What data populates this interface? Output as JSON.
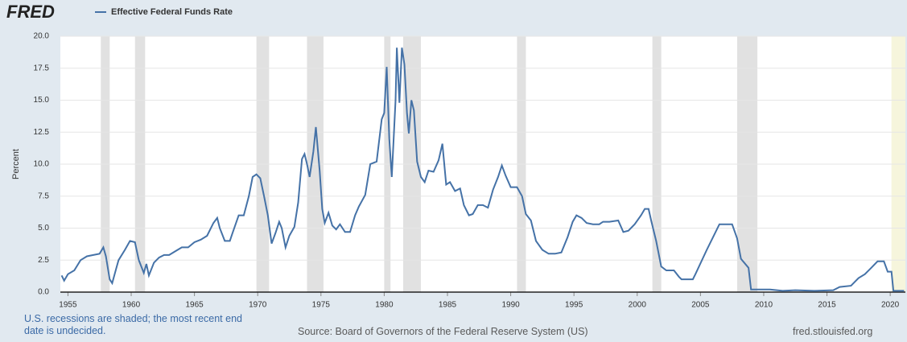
{
  "chart_data": {
    "type": "line",
    "logo": "FRED",
    "y_label": "Percent",
    "note": "U.S. recessions are shaded; the most recent end date is undecided.",
    "source": "Source: Board of Governors of the Federal Reserve System (US)",
    "site": "fred.stlouisfed.org",
    "xlim": [
      1954.4,
      2021.2
    ],
    "ylim": [
      0,
      20
    ],
    "xticks": [
      1955,
      1960,
      1965,
      1970,
      1975,
      1980,
      1985,
      1990,
      1995,
      2000,
      2005,
      2010,
      2015,
      2020
    ],
    "yticks": [
      {
        "value": 0,
        "label": "0.0"
      },
      {
        "value": 2.5,
        "label": "2.5"
      },
      {
        "value": 5,
        "label": "5.0"
      },
      {
        "value": 7.5,
        "label": "7.5"
      },
      {
        "value": 10,
        "label": "10.0"
      },
      {
        "value": 12.5,
        "label": "12.5"
      },
      {
        "value": 15,
        "label": "15.0"
      },
      {
        "value": 17.5,
        "label": "17.5"
      },
      {
        "value": 20,
        "label": "20.0"
      }
    ],
    "grid": true,
    "recession_color": "#e1e1e1",
    "recessions": [
      [
        1957.6,
        1958.3
      ],
      [
        1960.3,
        1961.1
      ],
      [
        1969.9,
        1970.9
      ],
      [
        1973.9,
        1975.2
      ],
      [
        1980.0,
        1980.5
      ],
      [
        1981.5,
        1982.9
      ],
      [
        1990.5,
        1991.2
      ],
      [
        2001.2,
        2001.9
      ],
      [
        2007.9,
        2009.5
      ]
    ],
    "pending_recession": {
      "start": 2020.1,
      "end": 2021.2,
      "color": "#f6f5dc"
    },
    "x": [
      1954.5,
      1954.7,
      1955.0,
      1955.5,
      1956.0,
      1956.5,
      1957.0,
      1957.5,
      1957.8,
      1958.0,
      1958.3,
      1958.5,
      1958.8,
      1959.0,
      1959.5,
      1959.9,
      1960.3,
      1960.6,
      1960.8,
      1961.0,
      1961.2,
      1961.4,
      1961.8,
      1962.2,
      1962.6,
      1963.0,
      1963.5,
      1964.0,
      1964.5,
      1965.0,
      1965.5,
      1966.0,
      1966.5,
      1966.8,
      1967.0,
      1967.4,
      1967.8,
      1968.0,
      1968.5,
      1968.9,
      1969.3,
      1969.6,
      1969.9,
      1970.2,
      1970.5,
      1970.8,
      1971.1,
      1971.4,
      1971.7,
      1971.9,
      1972.2,
      1972.5,
      1972.9,
      1973.2,
      1973.5,
      1973.7,
      1973.9,
      1974.1,
      1974.4,
      1974.6,
      1974.9,
      1975.1,
      1975.3,
      1975.6,
      1975.9,
      1976.2,
      1976.5,
      1976.9,
      1977.3,
      1977.7,
      1978.0,
      1978.5,
      1978.9,
      1979.4,
      1979.8,
      1980.0,
      1980.2,
      1980.4,
      1980.6,
      1980.9,
      1981.0,
      1981.2,
      1981.4,
      1981.6,
      1981.8,
      1981.95,
      1982.15,
      1982.35,
      1982.6,
      1982.9,
      1983.2,
      1983.5,
      1983.9,
      1984.3,
      1984.6,
      1984.9,
      1985.2,
      1985.6,
      1986.0,
      1986.3,
      1986.7,
      1987.0,
      1987.4,
      1987.8,
      1988.2,
      1988.6,
      1989.0,
      1989.3,
      1989.6,
      1990.0,
      1990.5,
      1990.9,
      1991.2,
      1991.6,
      1992.0,
      1992.5,
      1993.0,
      1993.5,
      1994.0,
      1994.5,
      1994.9,
      1995.2,
      1995.6,
      1996.0,
      1996.5,
      1997.0,
      1997.3,
      1997.8,
      1998.5,
      1998.9,
      1999.3,
      1999.8,
      2000.3,
      2000.6,
      2000.9,
      2001.1,
      2001.5,
      2001.9,
      2002.3,
      2002.9,
      2003.3,
      2003.5,
      2004.4,
      2004.6,
      2005.5,
      2006.5,
      2007.5,
      2007.9,
      2008.2,
      2008.8,
      2009.0,
      2009.5,
      2010.5,
      2011.5,
      2012.5,
      2014.0,
      2015.5,
      2016.0,
      2016.9,
      2017.5,
      2018.0,
      2018.5,
      2019.0,
      2019.5,
      2019.8,
      2020.1,
      2020.25,
      2021.1
    ],
    "series": [
      {
        "name": "Effective Federal Funds Rate",
        "color": "#4572a7",
        "values": [
          1.3,
          0.9,
          1.4,
          1.7,
          2.5,
          2.8,
          2.9,
          3.0,
          3.5,
          2.8,
          1.0,
          0.7,
          1.8,
          2.5,
          3.3,
          4.0,
          3.9,
          2.5,
          2.0,
          1.5,
          2.2,
          1.3,
          2.3,
          2.7,
          2.9,
          2.9,
          3.2,
          3.5,
          3.5,
          3.9,
          4.1,
          4.4,
          5.4,
          5.8,
          5.0,
          4.0,
          4.0,
          4.6,
          6.0,
          6.0,
          7.5,
          9.0,
          9.2,
          8.9,
          7.5,
          6.0,
          3.8,
          4.6,
          5.5,
          5.0,
          3.5,
          4.4,
          5.1,
          7.0,
          10.4,
          10.8,
          10.0,
          9.0,
          11.0,
          12.9,
          9.5,
          6.5,
          5.4,
          6.2,
          5.2,
          4.9,
          5.3,
          4.7,
          4.7,
          6.0,
          6.7,
          7.6,
          10.0,
          10.2,
          13.5,
          14.0,
          17.6,
          12.0,
          9.0,
          15.0,
          19.1,
          14.8,
          19.1,
          17.8,
          14.0,
          12.4,
          15.0,
          14.2,
          10.2,
          9.0,
          8.6,
          9.5,
          9.4,
          10.3,
          11.6,
          8.4,
          8.6,
          7.9,
          8.1,
          6.8,
          6.0,
          6.1,
          6.8,
          6.8,
          6.6,
          8.0,
          9.0,
          9.9,
          9.1,
          8.2,
          8.2,
          7.5,
          6.1,
          5.6,
          4.0,
          3.3,
          3.0,
          3.0,
          3.1,
          4.3,
          5.5,
          6.0,
          5.8,
          5.4,
          5.3,
          5.3,
          5.5,
          5.5,
          5.6,
          4.7,
          4.8,
          5.3,
          6.0,
          6.5,
          6.5,
          5.6,
          4.0,
          2.0,
          1.7,
          1.7,
          1.2,
          1.0,
          1.0,
          1.4,
          3.3,
          5.3,
          5.3,
          4.2,
          2.6,
          1.9,
          0.2,
          0.2,
          0.2,
          0.1,
          0.15,
          0.1,
          0.15,
          0.4,
          0.5,
          1.1,
          1.4,
          1.9,
          2.4,
          2.4,
          1.6,
          1.6,
          0.1,
          0.1
        ]
      }
    ]
  }
}
